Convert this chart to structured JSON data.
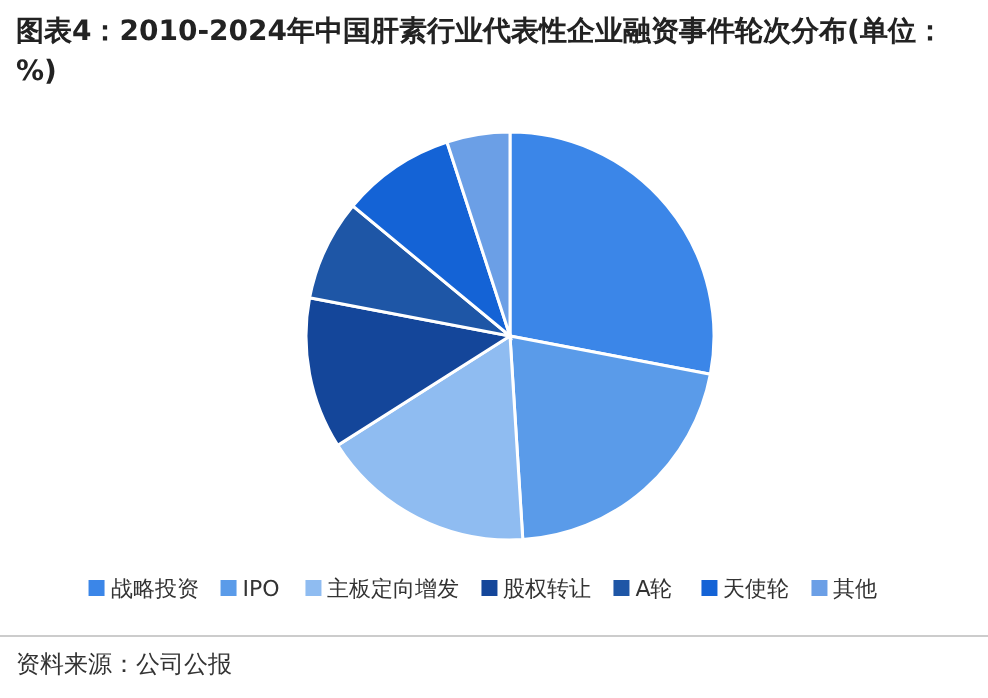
{
  "chart_data": {
    "type": "pie",
    "title": "图表4：2010-2024年中国肝素行业代表性企业融资事件轮次分布(单位：%)",
    "categories": [
      "战略投资",
      "IPO",
      "主板定向增发",
      "股权转让",
      "A轮",
      "天使轮",
      "其他"
    ],
    "values": [
      28,
      21,
      17,
      12,
      8,
      9,
      5
    ],
    "colors": [
      "#3b86e8",
      "#5a9be9",
      "#8fbcf1",
      "#14469a",
      "#1e56a6",
      "#1463d6",
      "#6b9fe6"
    ],
    "legend": "bottom",
    "annotations": [
      "资料来源：公司公报"
    ]
  }
}
